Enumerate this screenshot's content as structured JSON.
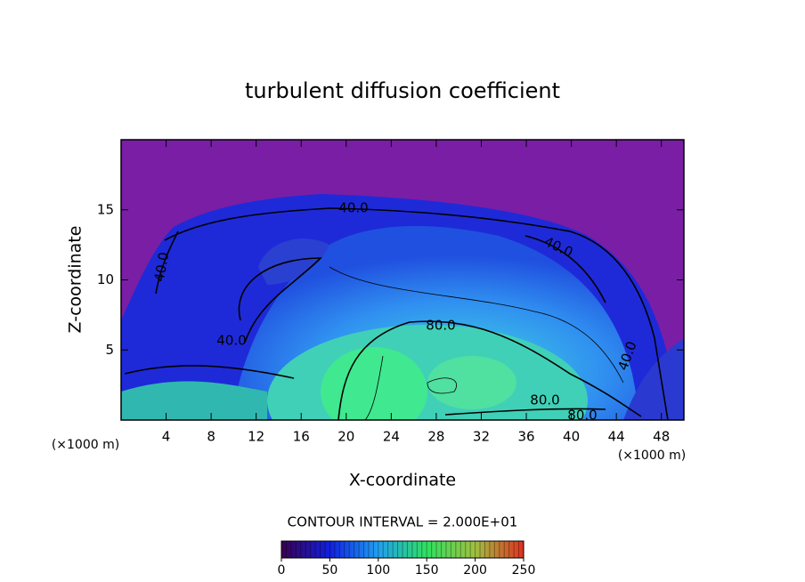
{
  "chart_data": {
    "type": "contour",
    "title": "turbulent diffusion coefficient",
    "x_label": "X-coordinate",
    "y_label": "Z-coordinate",
    "x_unit_left": "(×1000 m)",
    "x_unit_right": "(×1000 m)",
    "xlim": [
      0,
      50
    ],
    "xticks": [
      4,
      8,
      12,
      16,
      20,
      24,
      28,
      32,
      36,
      40,
      44,
      48
    ],
    "ylim": [
      0,
      20
    ],
    "yticks": [
      5,
      10,
      15
    ],
    "contour_labels": [
      "40.0",
      "40.0",
      "40.0",
      "40.0",
      "40.0",
      "80.0",
      "80.0",
      "80.0"
    ],
    "contour_interval": "CONTOUR INTERVAL = 2.000E+01",
    "colorbar": {
      "lim": [
        0,
        250
      ],
      "ticks": [
        0,
        50,
        100,
        150,
        200,
        250
      ]
    }
  }
}
